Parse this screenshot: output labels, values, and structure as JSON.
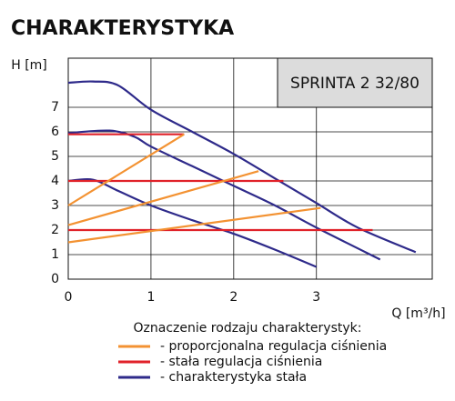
{
  "chart_data": {
    "type": "line",
    "title": "CHARAKTERYSTYKA",
    "model": "SPRINTA 2 32/80",
    "y_label": "H [m]",
    "x_label": "Q [m³/h]",
    "xlim": [
      0,
      4.4
    ],
    "ylim": [
      0,
      9
    ],
    "xticks": [
      0,
      1,
      2,
      3
    ],
    "yticks": [
      0,
      1,
      2,
      3,
      4,
      5,
      6,
      7
    ],
    "grid": true,
    "series": [
      {
        "color": "#2e2a8a",
        "x": [
          0,
          0.3,
          0.6,
          1,
          1.5,
          2,
          2.5,
          3,
          3.5,
          4.2
        ],
        "values": [
          8,
          8.05,
          7.9,
          6.9,
          6.0,
          5.1,
          4.1,
          3.1,
          2.1,
          1.1
        ]
      },
      {
        "color": "#2e2a8a",
        "x": [
          0,
          0.5,
          0.8,
          1,
          1.5,
          2,
          2.5,
          3,
          3.77
        ],
        "values": [
          5.95,
          6.05,
          5.8,
          5.4,
          4.6,
          3.8,
          3.0,
          2.1,
          0.8
        ]
      },
      {
        "color": "#2e2a8a",
        "x": [
          0,
          0.3,
          0.6,
          1,
          1.5,
          2,
          2.5,
          3
        ],
        "values": [
          4,
          4.05,
          3.6,
          3.0,
          2.4,
          1.85,
          1.2,
          0.5
        ]
      },
      {
        "color": "#e0222a",
        "x": [
          0,
          1.4
        ],
        "values": [
          5.9,
          5.9
        ]
      },
      {
        "color": "#e0222a",
        "x": [
          0,
          2.6
        ],
        "values": [
          4,
          4
        ]
      },
      {
        "color": "#e0222a",
        "x": [
          0,
          3.68
        ],
        "values": [
          2,
          2
        ]
      },
      {
        "color": "#f39232",
        "x": [
          0,
          1.4
        ],
        "values": [
          3,
          5.9
        ]
      },
      {
        "color": "#f39232",
        "x": [
          0,
          2.3
        ],
        "values": [
          2.2,
          4.4
        ]
      },
      {
        "color": "#f39232",
        "x": [
          0,
          3.05
        ],
        "values": [
          1.5,
          2.9
        ]
      }
    ],
    "legend": {
      "title": "Oznaczenie rodzaju charakterystyk:",
      "items": [
        {
          "label": "- proporcjonalna regulacja ciśnienia",
          "color": "#f39232"
        },
        {
          "label": "- stała regulacja ciśnienia",
          "color": "#e0222a"
        },
        {
          "label": "- charakterystyka stała",
          "color": "#2e2a8a"
        }
      ]
    }
  }
}
